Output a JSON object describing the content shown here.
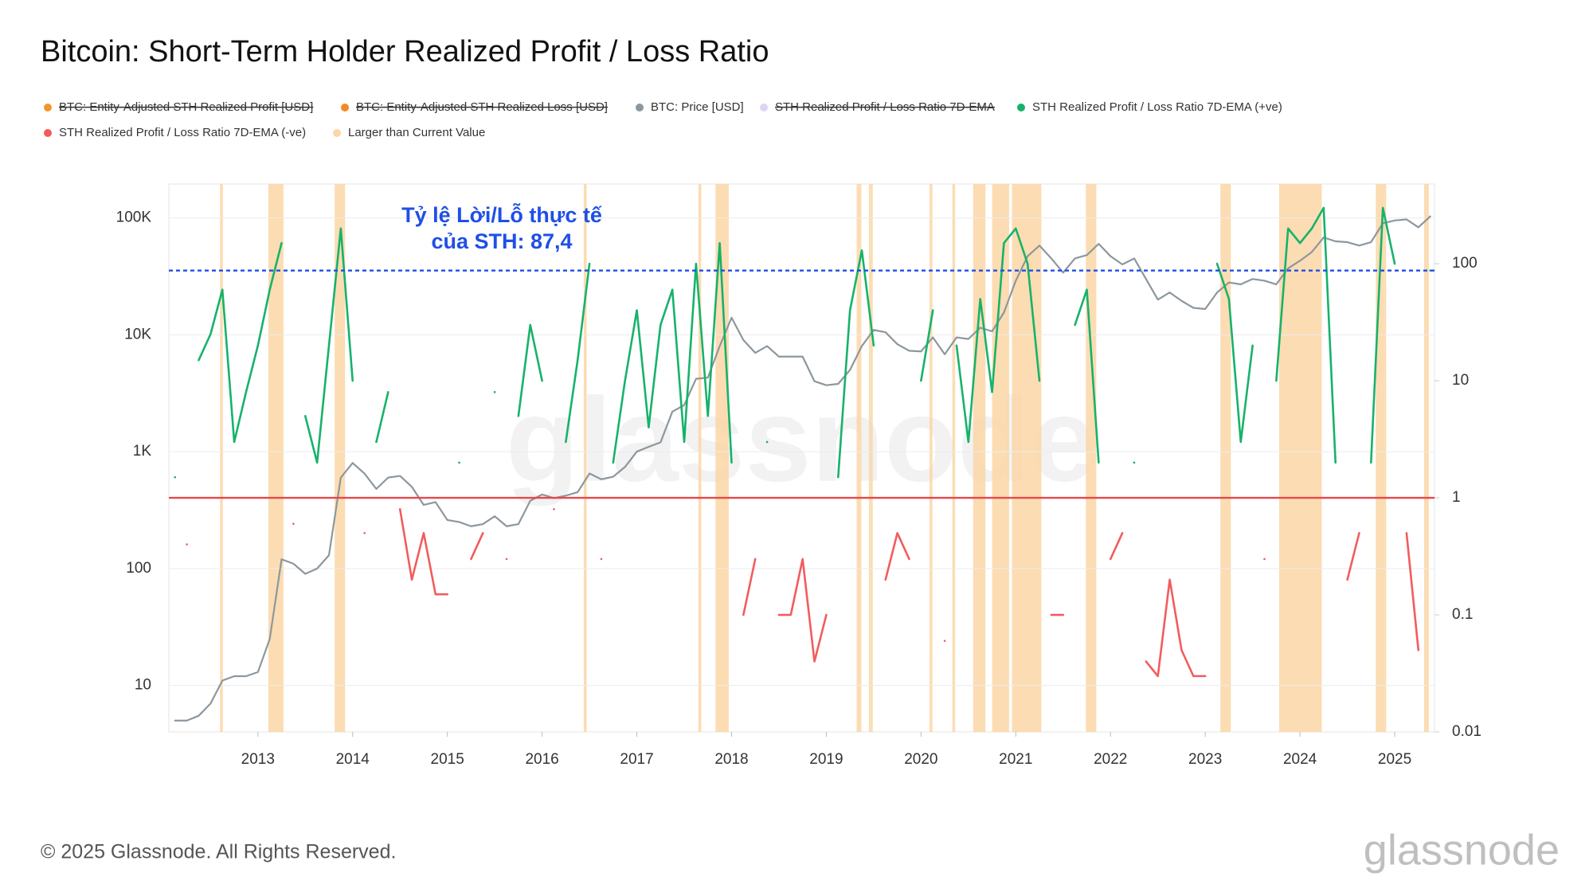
{
  "chart_data": {
    "type": "line",
    "title": "Bitcoin: Short-Term Holder Realized Profit / Loss Ratio",
    "footer": "© 2025 Glassnode. All Rights Reserved.",
    "watermark": "glassnode",
    "annotation": [
      "Tỷ lệ Lời/Lỗ thực tế",
      "của STH: 87,4"
    ],
    "xlim": [
      2012.06,
      2025.42
    ],
    "xticks": [
      2013,
      2014,
      2015,
      2016,
      2017,
      2018,
      2019,
      2020,
      2021,
      2022,
      2023,
      2024,
      2025
    ],
    "ylog": true,
    "ylim": [
      4,
      195000
    ],
    "yticks": [
      10,
      100,
      {
        "value": 1000,
        "label": "1K"
      },
      {
        "value": 10000,
        "label": "10K"
      },
      {
        "value": 100000,
        "label": "100K"
      }
    ],
    "y2log": true,
    "y2lim": [
      0.01,
      480
    ],
    "y2ticks": [
      0.01,
      0.1,
      1,
      10,
      100
    ],
    "grid": true,
    "reference_lines": [
      {
        "value": 87.4,
        "axis": "y2",
        "color": "#1f4fe6",
        "style": "dashed"
      },
      {
        "value": 1,
        "axis": "y2",
        "color": "#e8474a",
        "style": "solid"
      }
    ],
    "x": [
      2012.125,
      2012.25,
      2012.375,
      2012.5,
      2012.625,
      2012.75,
      2012.875,
      2013,
      2013.125,
      2013.25,
      2013.375,
      2013.5,
      2013.625,
      2013.75,
      2013.875,
      2014,
      2014.125,
      2014.25,
      2014.375,
      2014.5,
      2014.625,
      2014.75,
      2014.875,
      2015,
      2015.125,
      2015.25,
      2015.375,
      2015.5,
      2015.625,
      2015.75,
      2015.875,
      2016,
      2016.125,
      2016.25,
      2016.375,
      2016.5,
      2016.625,
      2016.75,
      2016.875,
      2017,
      2017.125,
      2017.25,
      2017.375,
      2017.5,
      2017.625,
      2017.75,
      2017.875,
      2018,
      2018.125,
      2018.25,
      2018.375,
      2018.5,
      2018.625,
      2018.75,
      2018.875,
      2019,
      2019.125,
      2019.25,
      2019.375,
      2019.5,
      2019.625,
      2019.75,
      2019.875,
      2020,
      2020.125,
      2020.25,
      2020.375,
      2020.5,
      2020.625,
      2020.75,
      2020.875,
      2021,
      2021.125,
      2021.25,
      2021.375,
      2021.5,
      2021.625,
      2021.75,
      2021.875,
      2022,
      2022.125,
      2022.25,
      2022.375,
      2022.5,
      2022.625,
      2022.75,
      2022.875,
      2023,
      2023.125,
      2023.25,
      2023.375,
      2023.5,
      2023.625,
      2023.75,
      2023.875,
      2024,
      2024.125,
      2024.25,
      2024.375,
      2024.5,
      2024.625,
      2024.75,
      2024.875,
      2025,
      2025.125,
      2025.25,
      2025.375
    ],
    "series": [
      {
        "name": "BTC: Entity-Adjusted STH Realized Profit [USD]",
        "color": "#f0972c",
        "visible": false
      },
      {
        "name": "BTC: Entity-Adjusted STH Realized Loss [USD]",
        "color": "#f28a24",
        "visible": false
      },
      {
        "name": "BTC: Price [USD]",
        "color": "#8c979e",
        "visible": true,
        "axis": "y",
        "values": [
          5,
          5,
          5.5,
          7,
          11,
          12,
          12,
          13,
          25,
          120,
          110,
          90,
          100,
          130,
          600,
          800,
          650,
          480,
          600,
          620,
          500,
          350,
          370,
          260,
          250,
          230,
          240,
          280,
          230,
          240,
          380,
          430,
          400,
          420,
          450,
          650,
          580,
          610,
          740,
          1000,
          1100,
          1200,
          2200,
          2500,
          4200,
          4300,
          8000,
          14000,
          9000,
          7000,
          8000,
          6500,
          6500,
          6500,
          4000,
          3700,
          3800,
          5000,
          8000,
          11000,
          10500,
          8300,
          7300,
          7200,
          9500,
          6800,
          9500,
          9200,
          11500,
          10700,
          15500,
          29000,
          47000,
          58000,
          45000,
          34000,
          45000,
          48000,
          60000,
          47000,
          40000,
          45000,
          30000,
          20000,
          23000,
          19500,
          17000,
          16600,
          23000,
          28000,
          27000,
          30000,
          29000,
          27000,
          37000,
          43000,
          51000,
          68000,
          63000,
          62000,
          58000,
          62000,
          90000,
          95000,
          97000,
          83000,
          103000
        ]
      },
      {
        "name": "STH Realized Profit / Loss Ratio 7D-EMA",
        "color": "#e0d4f5",
        "visible": false
      },
      {
        "name": "STH Realized Profit / Loss Ratio 7D-EMA (+ve)",
        "color": "#17b26a",
        "visible": true,
        "axis": "y2",
        "values": [
          1.5,
          null,
          15,
          25,
          60,
          3,
          8,
          20,
          60,
          150,
          null,
          5,
          2,
          20,
          200,
          10,
          null,
          3,
          8,
          null,
          null,
          null,
          null,
          null,
          2,
          null,
          null,
          8,
          null,
          5,
          30,
          10,
          null,
          3,
          15,
          100,
          null,
          2,
          10,
          40,
          4,
          30,
          60,
          3,
          100,
          5,
          150,
          2,
          null,
          null,
          3,
          null,
          null,
          null,
          null,
          null,
          1.5,
          40,
          130,
          20,
          null,
          null,
          null,
          10,
          40,
          null,
          20,
          3,
          50,
          8,
          150,
          200,
          100,
          10,
          null,
          null,
          30,
          60,
          2,
          null,
          null,
          2,
          null,
          null,
          null,
          null,
          null,
          null,
          100,
          50,
          3,
          20,
          null,
          10,
          200,
          150,
          200,
          300,
          2,
          null,
          null,
          2,
          300,
          100,
          null,
          null,
          87.4
        ]
      },
      {
        "name": "STH Realized Profit / Loss Ratio 7D-EMA (-ve)",
        "color": "#f25c5c",
        "visible": true,
        "axis": "y2",
        "values": [
          null,
          0.4,
          null,
          null,
          null,
          null,
          null,
          null,
          null,
          null,
          0.6,
          null,
          null,
          null,
          null,
          null,
          0.5,
          null,
          null,
          0.8,
          0.2,
          0.5,
          0.15,
          0.15,
          null,
          0.3,
          0.5,
          null,
          0.3,
          null,
          null,
          null,
          0.8,
          null,
          null,
          null,
          0.3,
          null,
          null,
          null,
          null,
          null,
          null,
          null,
          null,
          null,
          null,
          null,
          0.1,
          0.3,
          null,
          0.1,
          0.1,
          0.3,
          0.04,
          0.1,
          null,
          null,
          null,
          null,
          0.2,
          0.5,
          0.3,
          null,
          null,
          0.06,
          null,
          null,
          null,
          null,
          null,
          null,
          null,
          null,
          0.1,
          0.1,
          null,
          null,
          null,
          0.3,
          0.5,
          null,
          0.04,
          0.03,
          0.2,
          0.05,
          0.03,
          0.03,
          null,
          null,
          null,
          null,
          0.3,
          null,
          null,
          null,
          null,
          null,
          null,
          0.2,
          0.5,
          null,
          null,
          null,
          0.5,
          0.05,
          null
        ]
      },
      {
        "name": "Larger than Current Value",
        "color": "#fcd6a6",
        "visible": true,
        "ranges": [
          [
            2012.6,
            2012.63
          ],
          [
            2013.11,
            2013.27
          ],
          [
            2013.81,
            2013.92
          ],
          [
            2016.44,
            2016.47
          ],
          [
            2017.65,
            2017.68
          ],
          [
            2017.83,
            2017.97
          ],
          [
            2019.32,
            2019.37
          ],
          [
            2019.45,
            2019.49
          ],
          [
            2020.09,
            2020.12
          ],
          [
            2020.33,
            2020.36
          ],
          [
            2020.55,
            2020.68
          ],
          [
            2020.75,
            2020.93
          ],
          [
            2020.96,
            2021.27
          ],
          [
            2021.74,
            2021.85
          ],
          [
            2023.16,
            2023.27
          ],
          [
            2023.78,
            2024.23
          ],
          [
            2024.8,
            2024.91
          ],
          [
            2025.31,
            2025.36
          ]
        ]
      }
    ]
  }
}
